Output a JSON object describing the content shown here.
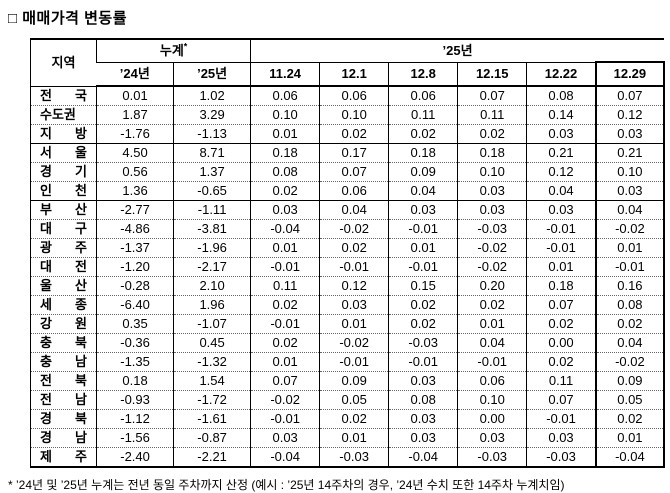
{
  "title": "□ 매매가격 변동률",
  "table": {
    "header": {
      "region": "지역",
      "cumulative": "누계",
      "cumulative_mark": "*",
      "year25": "’25년"
    },
    "sub_headers": [
      "’24년",
      "’25년",
      "11.24",
      "12.1",
      "12.8",
      "12.15",
      "12.22",
      "12.29"
    ],
    "rows": [
      {
        "region": "전 국",
        "values": [
          "0.01",
          "1.02",
          "0.06",
          "0.06",
          "0.06",
          "0.07",
          "0.08",
          "0.07"
        ]
      },
      {
        "region": "수도권",
        "values": [
          "1.87",
          "3.29",
          "0.10",
          "0.10",
          "0.11",
          "0.11",
          "0.14",
          "0.12"
        ]
      },
      {
        "region": "지 방",
        "values": [
          "-1.76",
          "-1.13",
          "0.01",
          "0.02",
          "0.02",
          "0.02",
          "0.03",
          "0.03"
        ]
      },
      {
        "region": "서 울",
        "values": [
          "4.50",
          "8.71",
          "0.18",
          "0.17",
          "0.18",
          "0.18",
          "0.21",
          "0.21"
        ]
      },
      {
        "region": "경 기",
        "values": [
          "0.56",
          "1.37",
          "0.08",
          "0.07",
          "0.09",
          "0.10",
          "0.12",
          "0.10"
        ]
      },
      {
        "region": "인 천",
        "values": [
          "1.36",
          "-0.65",
          "0.02",
          "0.06",
          "0.04",
          "0.03",
          "0.04",
          "0.03"
        ]
      },
      {
        "region": "부 산",
        "values": [
          "-2.77",
          "-1.11",
          "0.03",
          "0.04",
          "0.03",
          "0.03",
          "0.03",
          "0.04"
        ]
      },
      {
        "region": "대 구",
        "values": [
          "-4.86",
          "-3.81",
          "-0.04",
          "-0.02",
          "-0.01",
          "-0.03",
          "-0.01",
          "-0.02"
        ]
      },
      {
        "region": "광 주",
        "values": [
          "-1.37",
          "-1.96",
          "0.01",
          "0.02",
          "0.01",
          "-0.02",
          "-0.01",
          "0.01"
        ]
      },
      {
        "region": "대 전",
        "values": [
          "-1.20",
          "-2.17",
          "-0.01",
          "-0.01",
          "-0.01",
          "-0.02",
          "0.01",
          "-0.01"
        ]
      },
      {
        "region": "울 산",
        "values": [
          "-0.28",
          "2.10",
          "0.11",
          "0.12",
          "0.15",
          "0.20",
          "0.18",
          "0.16"
        ]
      },
      {
        "region": "세 종",
        "values": [
          "-6.40",
          "1.96",
          "0.02",
          "0.03",
          "0.02",
          "0.02",
          "0.07",
          "0.08"
        ]
      },
      {
        "region": "강 원",
        "values": [
          "0.35",
          "-1.07",
          "-0.01",
          "0.01",
          "0.02",
          "0.01",
          "0.02",
          "0.02"
        ]
      },
      {
        "region": "충 북",
        "values": [
          "-0.36",
          "0.45",
          "0.02",
          "-0.02",
          "-0.03",
          "0.04",
          "0.00",
          "0.04"
        ]
      },
      {
        "region": "충 남",
        "values": [
          "-1.35",
          "-1.32",
          "0.01",
          "-0.01",
          "-0.01",
          "-0.01",
          "0.02",
          "-0.02"
        ]
      },
      {
        "region": "전 북",
        "values": [
          "0.18",
          "1.54",
          "0.07",
          "0.09",
          "0.03",
          "0.06",
          "0.11",
          "0.09"
        ]
      },
      {
        "region": "전 남",
        "values": [
          "-0.93",
          "-1.72",
          "-0.02",
          "0.05",
          "0.08",
          "0.10",
          "0.07",
          "0.05"
        ]
      },
      {
        "region": "경 북",
        "values": [
          "-1.12",
          "-1.61",
          "-0.01",
          "0.02",
          "0.03",
          "0.00",
          "-0.01",
          "0.02"
        ]
      },
      {
        "region": "경 남",
        "values": [
          "-1.56",
          "-0.87",
          "0.03",
          "0.01",
          "0.03",
          "0.03",
          "0.03",
          "0.01"
        ]
      },
      {
        "region": "제 주",
        "values": [
          "-2.40",
          "-2.21",
          "-0.04",
          "-0.03",
          "-0.04",
          "-0.03",
          "-0.03",
          "-0.04"
        ]
      }
    ]
  },
  "footnote": "* ’24년 및 ’25년 누계는 전년 동일 주차까지 산정 (예시 : ’25년 14주차의 경우, ’24년 수치 또한 14주차 누계치임)"
}
